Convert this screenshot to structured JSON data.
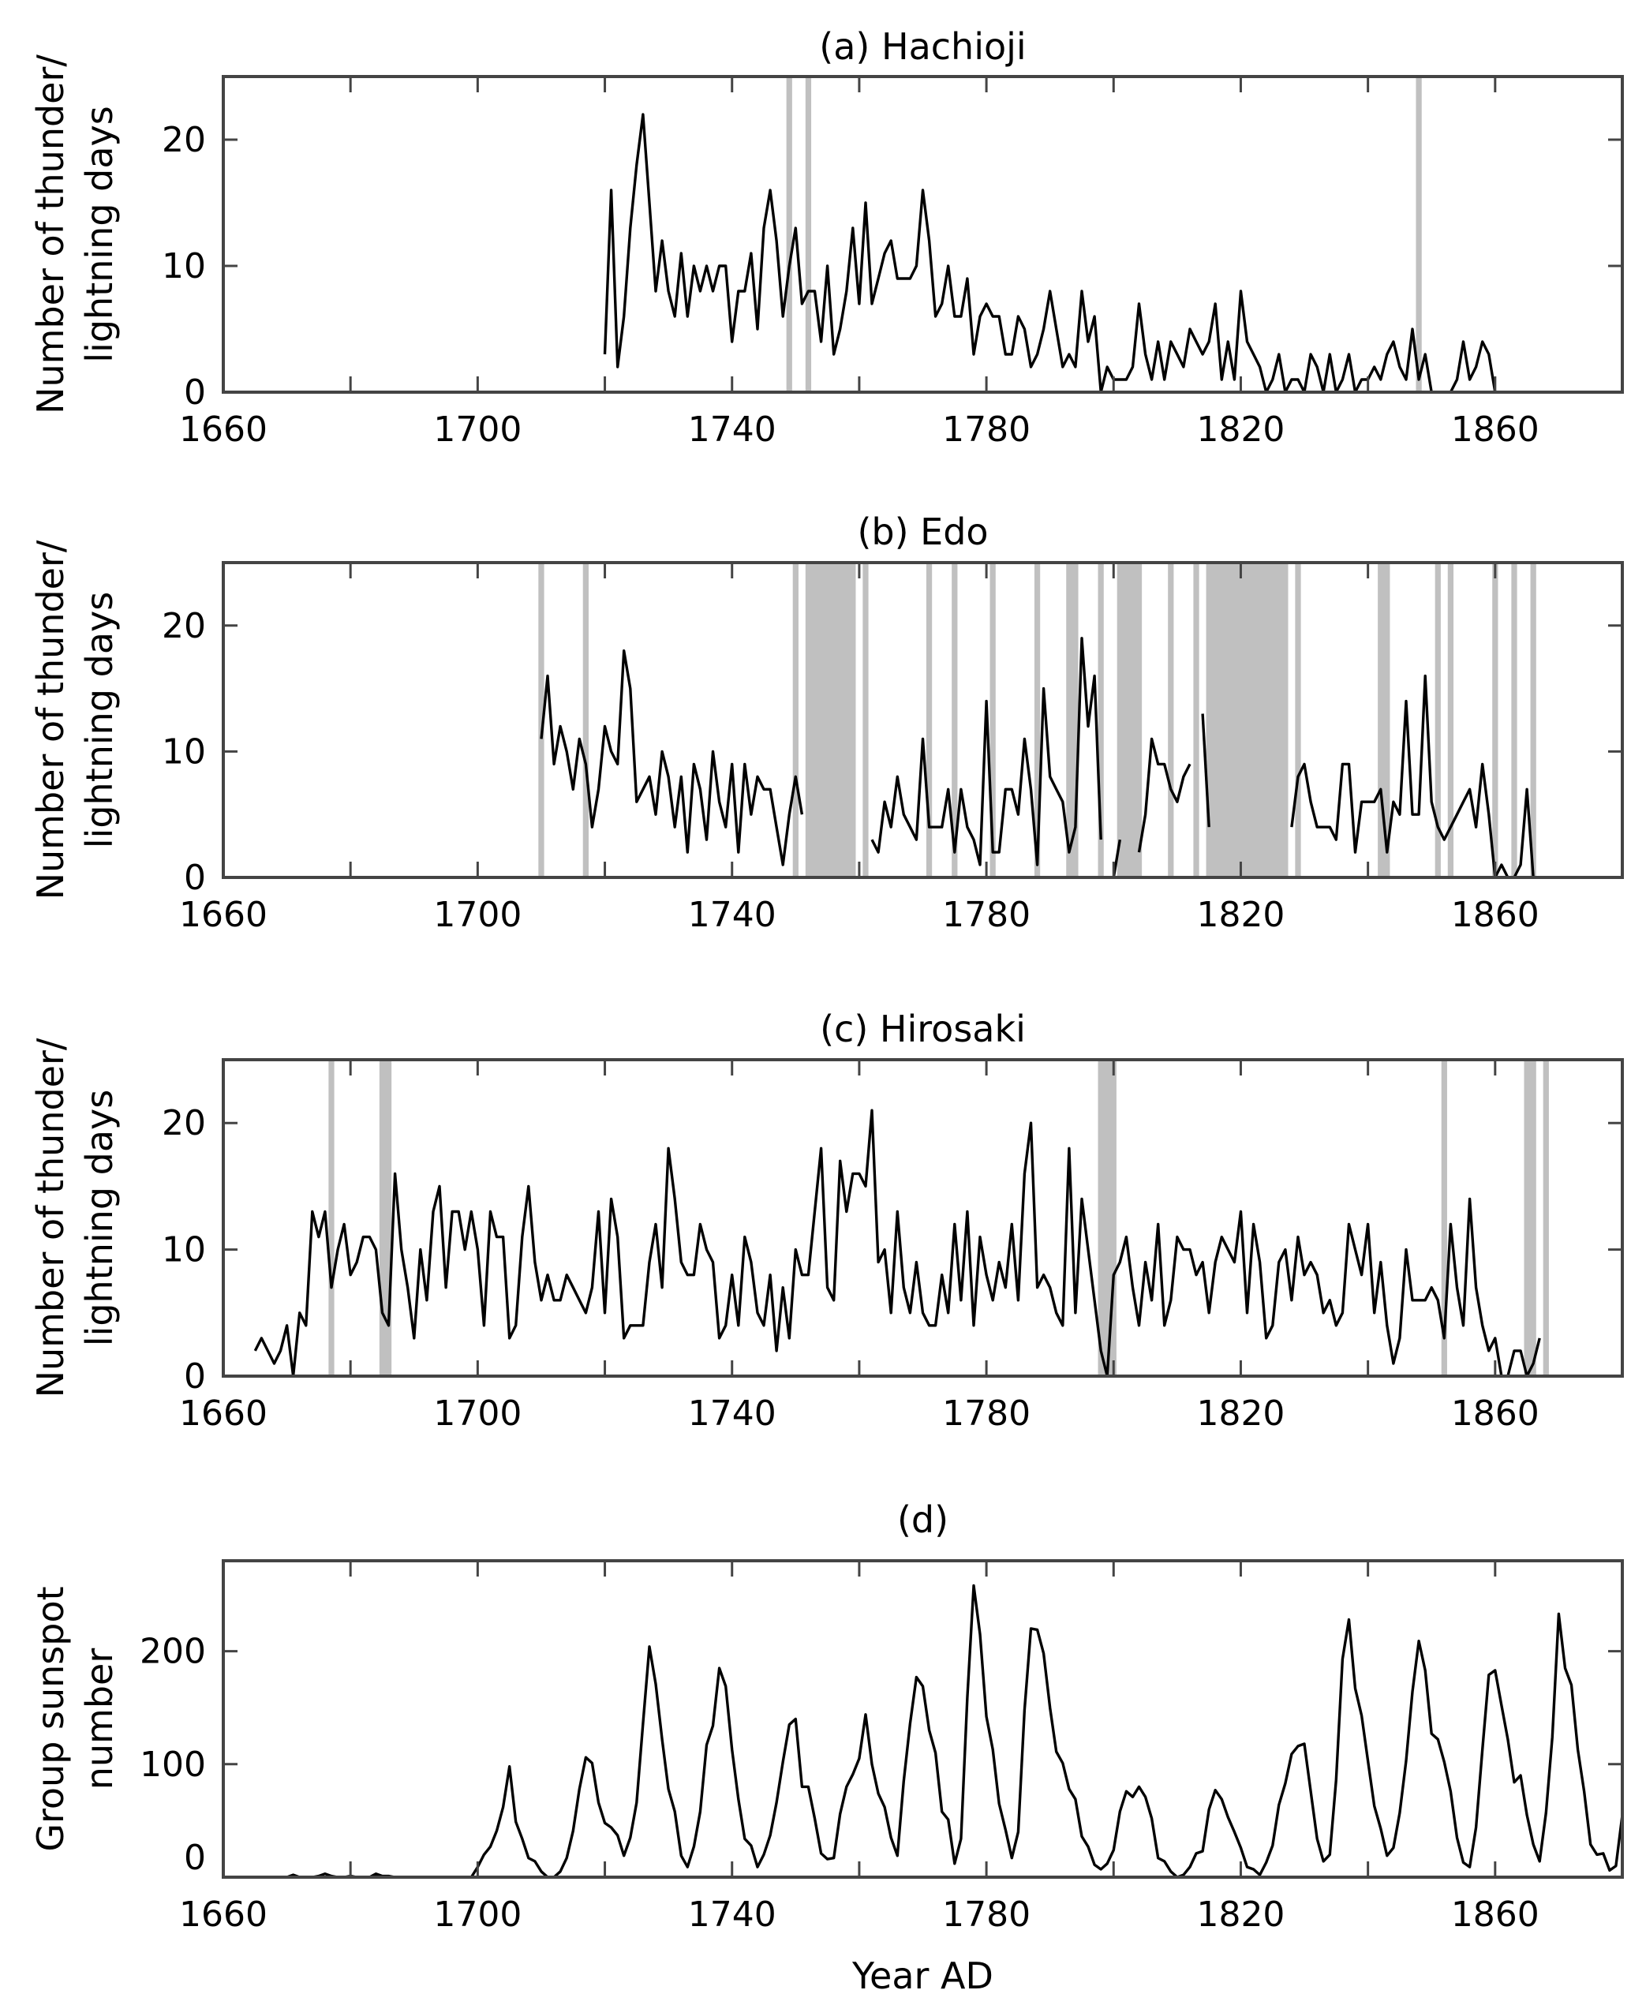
{
  "chart_data": [
    {
      "type": "line",
      "title": "(a) Hachioji",
      "ylabel": [
        "Number of thunder/",
        "lightning days"
      ],
      "xlabel": "",
      "xlim": [
        1660,
        1880
      ],
      "ylim": [
        0,
        25
      ],
      "xticks": [
        1660,
        1680,
        1700,
        1720,
        1740,
        1760,
        1780,
        1800,
        1820,
        1840,
        1860,
        1880
      ],
      "xtick_labels": [
        "1660",
        "1700",
        "1740",
        "1780",
        "1820",
        "1860"
      ],
      "yticks": [
        0,
        10,
        20
      ],
      "ytick_labels": [
        "0",
        "10",
        "20"
      ],
      "line_color": "#000000",
      "shade_color": "#c0c0c0",
      "shaded_years": [
        [
          1749,
          1749
        ],
        [
          1752,
          1752
        ],
        [
          1848,
          1848
        ]
      ],
      "start_year": 1720,
      "values": [
        3,
        16,
        2,
        6,
        13,
        18,
        22,
        15,
        8,
        12,
        8,
        6,
        11,
        6,
        10,
        8,
        10,
        8,
        10,
        10,
        4,
        8,
        8,
        11,
        5,
        13,
        16,
        12,
        6,
        10,
        13,
        7,
        8,
        8,
        4,
        10,
        3,
        5,
        8,
        13,
        7,
        15,
        7,
        9,
        11,
        12,
        9,
        9,
        9,
        10,
        16,
        12,
        6,
        7,
        10,
        6,
        6,
        9,
        3,
        6,
        7,
        6,
        6,
        3,
        3,
        6,
        5,
        2,
        3,
        5,
        8,
        5,
        2,
        3,
        2,
        8,
        4,
        6,
        0,
        2,
        1,
        1,
        1,
        2,
        7,
        3,
        1,
        4,
        1,
        4,
        3,
        2,
        5,
        4,
        3,
        4,
        7,
        1,
        4,
        1,
        8,
        4,
        3,
        2,
        0,
        1,
        3,
        0,
        1,
        1,
        0,
        3,
        2,
        0,
        3,
        0,
        1,
        3,
        0,
        1,
        1,
        2,
        1,
        3,
        4,
        2,
        1,
        5,
        1,
        3,
        0,
        0,
        0,
        0,
        1,
        4,
        1,
        2,
        4,
        3,
        0,
        0,
        0,
        0,
        0,
        0,
        0,
        0,
        0
      ]
    },
    {
      "type": "line",
      "title": "(b) Edo",
      "ylabel": [
        "Number of thunder/",
        "lightning days"
      ],
      "xlabel": "",
      "xlim": [
        1660,
        1880
      ],
      "ylim": [
        0,
        25
      ],
      "xticks": [
        1660,
        1680,
        1700,
        1720,
        1740,
        1760,
        1780,
        1800,
        1820,
        1840,
        1860,
        1880
      ],
      "xtick_labels": [
        "1660",
        "1700",
        "1740",
        "1780",
        "1820",
        "1860"
      ],
      "yticks": [
        0,
        10,
        20
      ],
      "ytick_labels": [
        "0",
        "10",
        "20"
      ],
      "line_color": "#000000",
      "shade_color": "#c0c0c0",
      "shaded_years": [
        [
          1710,
          1710
        ],
        [
          1717,
          1717
        ],
        [
          1750,
          1750
        ],
        [
          1752,
          1759
        ],
        [
          1761,
          1761
        ],
        [
          1771,
          1771
        ],
        [
          1775,
          1775
        ],
        [
          1781,
          1781
        ],
        [
          1788,
          1788
        ],
        [
          1793,
          1794
        ],
        [
          1798,
          1798
        ],
        [
          1801,
          1804
        ],
        [
          1809,
          1809
        ],
        [
          1813,
          1813
        ],
        [
          1815,
          1827
        ],
        [
          1829,
          1829
        ],
        [
          1842,
          1843
        ],
        [
          1851,
          1851
        ],
        [
          1853,
          1853
        ],
        [
          1860,
          1860
        ],
        [
          1863,
          1863
        ],
        [
          1866,
          1866
        ]
      ],
      "start_year": 1710,
      "values": [
        11,
        16,
        9,
        12,
        10,
        7,
        11,
        9,
        4,
        7,
        12,
        10,
        9,
        18,
        15,
        6,
        7,
        8,
        5,
        10,
        8,
        4,
        8,
        2,
        9,
        7,
        3,
        10,
        6,
        4,
        9,
        2,
        9,
        5,
        8,
        7,
        7,
        4,
        1,
        5,
        8,
        5,
        null,
        null,
        null,
        null,
        null,
        null,
        null,
        null,
        null,
        null,
        3,
        2,
        6,
        4,
        8,
        5,
        4,
        3,
        11,
        4,
        4,
        4,
        7,
        2,
        7,
        4,
        3,
        1,
        14,
        2,
        2,
        7,
        7,
        5,
        11,
        7,
        1,
        15,
        8,
        7,
        6,
        2,
        4,
        19,
        12,
        16,
        3,
        null,
        0,
        3,
        null,
        null,
        2,
        5,
        11,
        9,
        9,
        7,
        6,
        8,
        9,
        null,
        13,
        4,
        null,
        null,
        null,
        null,
        null,
        null,
        null,
        null,
        null,
        null,
        null,
        null,
        4,
        8,
        9,
        6,
        4,
        4,
        4,
        3,
        9,
        9,
        2,
        6,
        6,
        6,
        7,
        2,
        6,
        5,
        14,
        5,
        5,
        16,
        6,
        4,
        3,
        4,
        5,
        6,
        7,
        4,
        9,
        5,
        0,
        1,
        0,
        0,
        1,
        7,
        0
      ]
    },
    {
      "type": "line",
      "title": "(c) Hirosaki",
      "ylabel": [
        "Number of thunder/",
        "lightning days"
      ],
      "xlabel": "",
      "xlim": [
        1660,
        1880
      ],
      "ylim": [
        0,
        25
      ],
      "xticks": [
        1660,
        1680,
        1700,
        1720,
        1740,
        1760,
        1780,
        1800,
        1820,
        1840,
        1860,
        1880
      ],
      "xtick_labels": [
        "1660",
        "1700",
        "1740",
        "1780",
        "1820",
        "1860"
      ],
      "yticks": [
        0,
        10,
        20
      ],
      "ytick_labels": [
        "0",
        "10",
        "20"
      ],
      "line_color": "#000000",
      "shade_color": "#c0c0c0",
      "shaded_years": [
        [
          1677,
          1677
        ],
        [
          1685,
          1686
        ],
        [
          1798,
          1800
        ],
        [
          1852,
          1852
        ],
        [
          1865,
          1866
        ],
        [
          1868,
          1868
        ]
      ],
      "start_year": 1665,
      "values": [
        2,
        3,
        2,
        1,
        2,
        4,
        0,
        5,
        4,
        13,
        11,
        13,
        7,
        10,
        12,
        8,
        9,
        11,
        11,
        10,
        5,
        4,
        16,
        10,
        7,
        3,
        10,
        6,
        13,
        15,
        7,
        13,
        13,
        10,
        13,
        10,
        4,
        13,
        11,
        11,
        3,
        4,
        11,
        15,
        9,
        6,
        8,
        6,
        6,
        8,
        7,
        6,
        5,
        7,
        13,
        5,
        14,
        11,
        3,
        4,
        4,
        4,
        9,
        12,
        7,
        18,
        14,
        9,
        8,
        8,
        12,
        10,
        9,
        3,
        4,
        8,
        4,
        11,
        9,
        5,
        4,
        8,
        2,
        7,
        3,
        10,
        8,
        8,
        13,
        18,
        7,
        6,
        17,
        13,
        16,
        16,
        15,
        21,
        9,
        10,
        5,
        13,
        7,
        5,
        9,
        5,
        4,
        4,
        8,
        5,
        12,
        6,
        13,
        4,
        11,
        8,
        6,
        9,
        7,
        12,
        6,
        16,
        20,
        7,
        8,
        7,
        5,
        4,
        18,
        5,
        14,
        10,
        6,
        2,
        0,
        8,
        9,
        11,
        7,
        4,
        9,
        6,
        12,
        4,
        6,
        11,
        10,
        10,
        8,
        9,
        5,
        9,
        11,
        10,
        9,
        13,
        5,
        12,
        9,
        3,
        4,
        9,
        10,
        6,
        11,
        8,
        9,
        8,
        5,
        6,
        4,
        5,
        12,
        10,
        8,
        12,
        5,
        9,
        4,
        1,
        3,
        10,
        6,
        6,
        6,
        7,
        6,
        3,
        12,
        7,
        4,
        14,
        7,
        4,
        2,
        3,
        0,
        0,
        2,
        2,
        0,
        1,
        3
      ]
    },
    {
      "type": "line",
      "title": "(d)",
      "ylabel": [
        "Group sunspot",
        "number"
      ],
      "xlabel": "Year AD",
      "xlim": [
        1660,
        1880
      ],
      "ylim": [
        0,
        280
      ],
      "xticks": [
        1660,
        1680,
        1700,
        1720,
        1740,
        1760,
        1780,
        1800,
        1820,
        1840,
        1860,
        1880
      ],
      "xtick_labels": [
        "1660",
        "1700",
        "1740",
        "1780",
        "1820",
        "1860"
      ],
      "yticks": [
        0,
        100,
        200
      ],
      "ytick_labels": [
        "0",
        "100",
        "200"
      ],
      "line_color": "#000000",
      "shaded_years": [],
      "start_year": 1660,
      "values": [
        0,
        0,
        0,
        0,
        0,
        0,
        0,
        0,
        0,
        0,
        0,
        2,
        0,
        0,
        0,
        1,
        3,
        1,
        0,
        0,
        1,
        0,
        0,
        0,
        3,
        1,
        1,
        0,
        0,
        0,
        0,
        0,
        0,
        0,
        0,
        0,
        0,
        0,
        0,
        0,
        9,
        20,
        27,
        41,
        62,
        98,
        49,
        34,
        17,
        14,
        5,
        0,
        0,
        5,
        17,
        41,
        78,
        106,
        101,
        66,
        48,
        44,
        37,
        19,
        35,
        66,
        136,
        204,
        171,
        122,
        78,
        58,
        19,
        9,
        27,
        58,
        117,
        134,
        185,
        169,
        113,
        69,
        34,
        28,
        9,
        20,
        37,
        66,
        102,
        135,
        140,
        80,
        80,
        52,
        21,
        16,
        17,
        56,
        80,
        91,
        105,
        144,
        100,
        74,
        62,
        35,
        19,
        85,
        136,
        177,
        169,
        130,
        110,
        58,
        51,
        12,
        34,
        159,
        258,
        215,
        142,
        113,
        65,
        42,
        17,
        40,
        148,
        220,
        219,
        198,
        150,
        111,
        101,
        78,
        69,
        36,
        27,
        11,
        7,
        12,
        24,
        58,
        76,
        71,
        80,
        71,
        52,
        17,
        14,
        5,
        0,
        2,
        9,
        21,
        23,
        60,
        77,
        69,
        53,
        40,
        26,
        9,
        7,
        2,
        13,
        28,
        64,
        83,
        109,
        116,
        118,
        76,
        34,
        14,
        20,
        86,
        193,
        228,
        167,
        143,
        103,
        63,
        43,
        19,
        26,
        57,
        103,
        164,
        209,
        183,
        127,
        122,
        102,
        76,
        35,
        13,
        9,
        44,
        113,
        179,
        183,
        152,
        122,
        84,
        90,
        55,
        29,
        14,
        57,
        124,
        233,
        185,
        170,
        113,
        76,
        29,
        20,
        21,
        6,
        10,
        55
      ]
    }
  ]
}
